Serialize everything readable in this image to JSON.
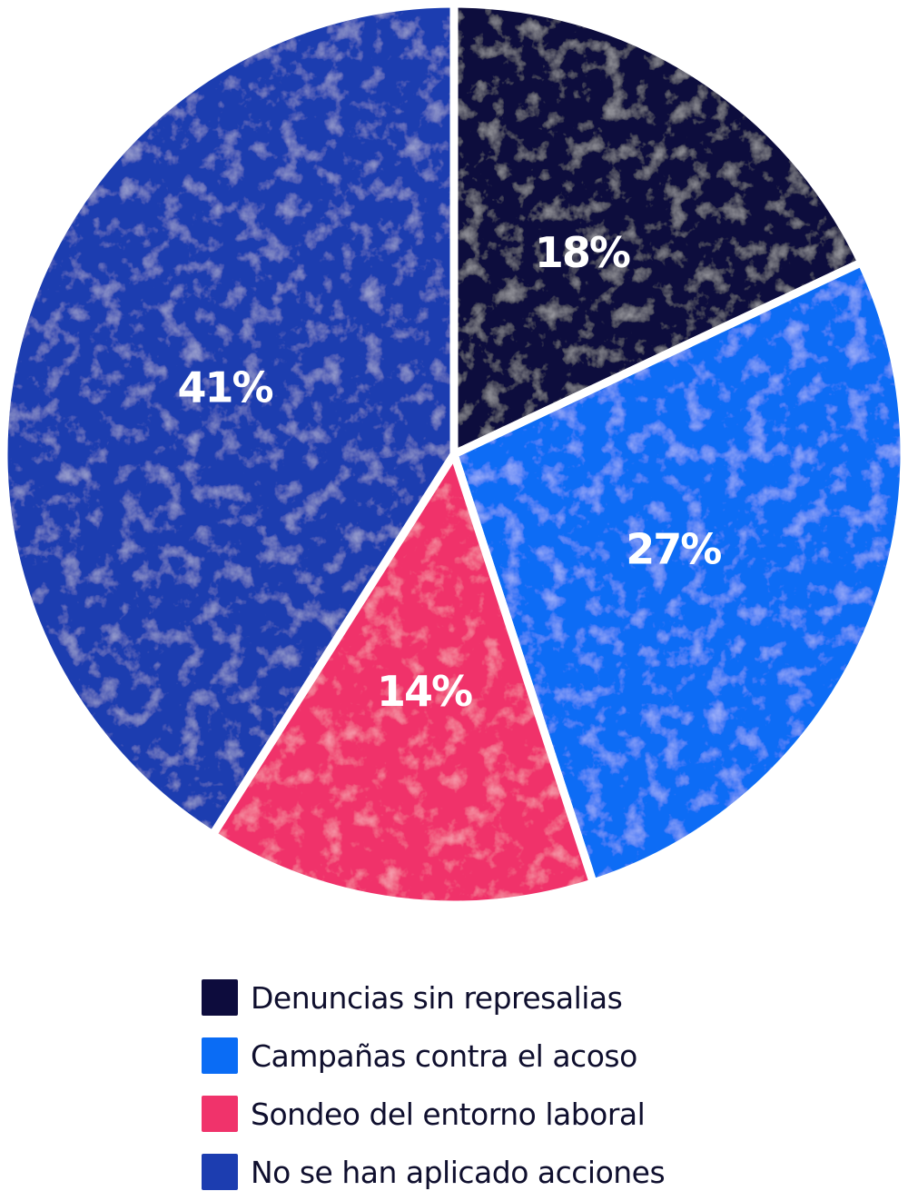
{
  "chart_data": {
    "type": "pie",
    "title": "",
    "start_angle_deg": 0,
    "direction": "clockwise",
    "legend_position": "bottom",
    "slices": [
      {
        "name": "Denuncias sin represalias",
        "value": 18,
        "label": "18%",
        "color": "#0d0c3d"
      },
      {
        "name": "Campañas contra el acoso",
        "value": 27,
        "label": "27%",
        "color": "#0a6cf5"
      },
      {
        "name": "Sondeo del entorno laboral",
        "value": 14,
        "label": "14%",
        "color": "#f0336b"
      },
      {
        "name": "No se han aplicado acciones",
        "value": 41,
        "label": "41%",
        "color": "#1c3db0"
      }
    ]
  },
  "legend": {
    "items": [
      {
        "label": "Denuncias sin represalias",
        "color": "#0d0c3d"
      },
      {
        "label": "Campañas contra el acoso",
        "color": "#0a6cf5"
      },
      {
        "label": "Sondeo del entorno laboral",
        "color": "#f0336b"
      },
      {
        "label": "No se han aplicado acciones",
        "color": "#1c3db0"
      }
    ]
  }
}
